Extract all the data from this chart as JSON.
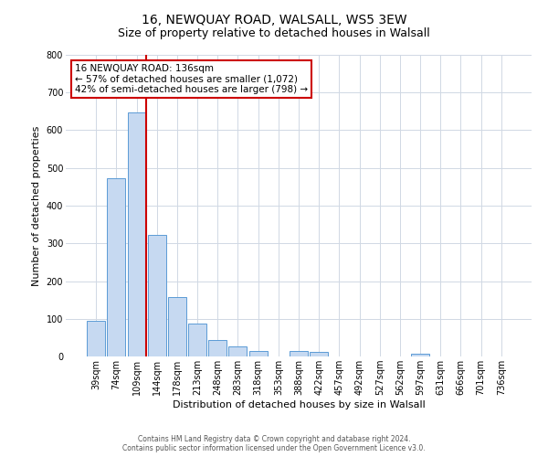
{
  "title": "16, NEWQUAY ROAD, WALSALL, WS5 3EW",
  "subtitle": "Size of property relative to detached houses in Walsall",
  "xlabel": "Distribution of detached houses by size in Walsall",
  "ylabel": "Number of detached properties",
  "bar_labels": [
    "39sqm",
    "74sqm",
    "109sqm",
    "144sqm",
    "178sqm",
    "213sqm",
    "248sqm",
    "283sqm",
    "318sqm",
    "353sqm",
    "388sqm",
    "422sqm",
    "457sqm",
    "492sqm",
    "527sqm",
    "562sqm",
    "597sqm",
    "631sqm",
    "666sqm",
    "701sqm",
    "736sqm"
  ],
  "bar_values": [
    95,
    473,
    648,
    323,
    157,
    88,
    43,
    26,
    15,
    0,
    15,
    13,
    0,
    0,
    0,
    0,
    8,
    0,
    0,
    0,
    0
  ],
  "bar_color": "#c6d9f1",
  "bar_edge_color": "#5b9bd5",
  "vline_color": "#cc0000",
  "annotation_title": "16 NEWQUAY ROAD: 136sqm",
  "annotation_line1": "← 57% of detached houses are smaller (1,072)",
  "annotation_line2": "42% of semi-detached houses are larger (798) →",
  "annotation_box_color": "#ffffff",
  "annotation_box_edge": "#cc0000",
  "ylim": [
    0,
    800
  ],
  "yticks": [
    0,
    100,
    200,
    300,
    400,
    500,
    600,
    700,
    800
  ],
  "footer1": "Contains HM Land Registry data © Crown copyright and database right 2024.",
  "footer2": "Contains public sector information licensed under the Open Government Licence v3.0.",
  "bg_color": "#ffffff",
  "grid_color": "#d0d8e4",
  "title_fontsize": 10,
  "subtitle_fontsize": 9,
  "axis_label_fontsize": 8,
  "tick_fontsize": 7,
  "annot_fontsize": 7.5,
  "footer_fontsize": 5.5
}
